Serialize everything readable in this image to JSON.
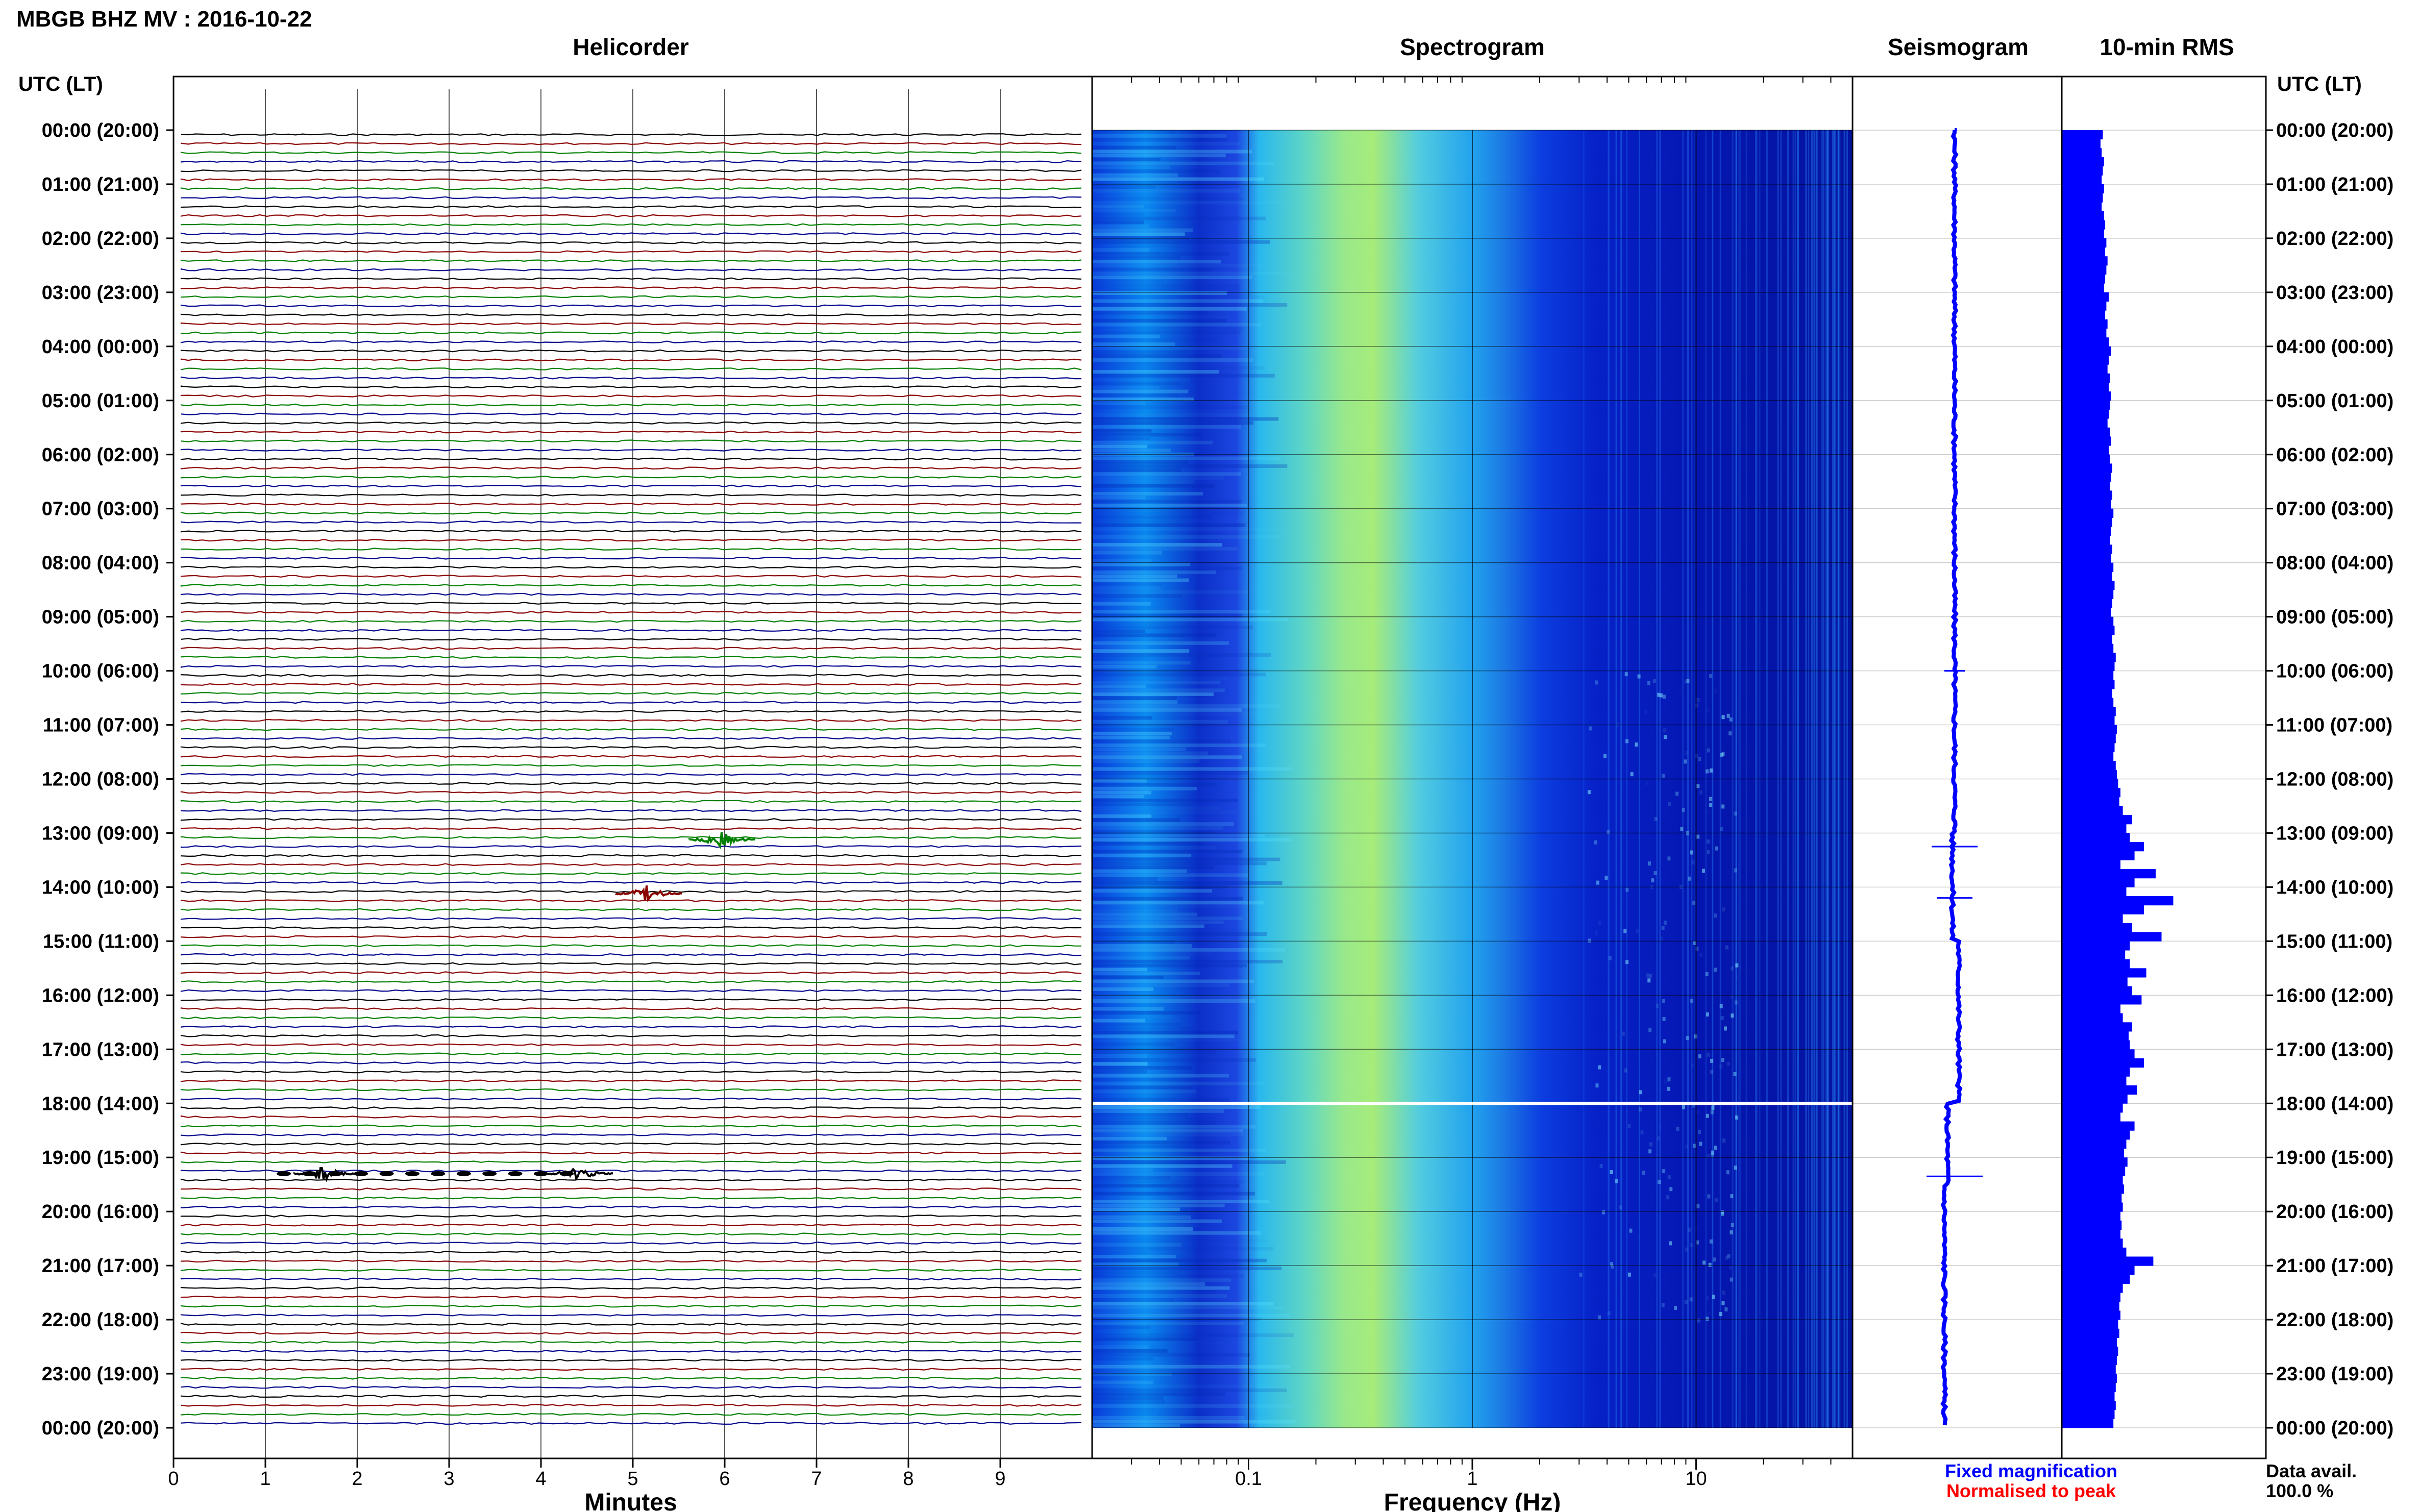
{
  "header": {
    "title": "MBGB BHZ MV : 2016-10-22"
  },
  "panels": {
    "helicorder": "Helicorder",
    "spectrogram": "Spectrogram",
    "seismogram": "Seismogram",
    "rms": "10-min RMS"
  },
  "axis_labels": {
    "utc_left": "UTC (LT)",
    "utc_right": "UTC (LT)",
    "minutes": "Minutes",
    "frequency": "Frequency (Hz)"
  },
  "legend": {
    "fixed": "Fixed magnification",
    "normalised": "Normalised to peak",
    "fixed_color": "#0000ff",
    "normalised_color": "#ff0000"
  },
  "data_availability": {
    "label": "Data avail.",
    "value": "100.0 %"
  },
  "colors": {
    "black_trace": "#000000",
    "red_trace": "#8b0000",
    "green_trace": "#008000",
    "blue_trace": "#00008b",
    "rms": "#0000ff"
  },
  "chart_data": {
    "type": "heatmap",
    "time_labels": [
      "00:00 (20:00)",
      "01:00 (21:00)",
      "02:00 (22:00)",
      "03:00 (23:00)",
      "04:00 (00:00)",
      "05:00 (01:00)",
      "06:00 (02:00)",
      "07:00 (03:00)",
      "08:00 (04:00)",
      "09:00 (05:00)",
      "10:00 (06:00)",
      "11:00 (07:00)",
      "12:00 (08:00)",
      "13:00 (09:00)",
      "14:00 (10:00)",
      "15:00 (11:00)",
      "16:00 (12:00)",
      "17:00 (13:00)",
      "18:00 (14:00)",
      "19:00 (15:00)",
      "20:00 (16:00)",
      "21:00 (17:00)",
      "22:00 (18:00)",
      "23:00 (19:00)",
      "00:00 (20:00)"
    ],
    "minutes_ticks": [
      "0",
      "1",
      "2",
      "3",
      "4",
      "5",
      "6",
      "7",
      "8",
      "9"
    ],
    "minutes_range": [
      0,
      10
    ],
    "freq_ticks": [
      "0.1",
      "1",
      "10"
    ],
    "freq_range": [
      0.02,
      50
    ],
    "freq_scale": "log",
    "rms_rel": [
      0.35,
      0.33,
      0.34,
      0.36,
      0.35,
      0.34,
      0.36,
      0.35,
      0.34,
      0.36,
      0.37,
      0.36,
      0.38,
      0.37,
      0.39,
      0.38,
      0.37,
      0.36,
      0.4,
      0.38,
      0.37,
      0.39,
      0.38,
      0.4,
      0.42,
      0.4,
      0.39,
      0.41,
      0.4,
      0.42,
      0.41,
      0.4,
      0.39,
      0.41,
      0.42,
      0.4,
      0.41,
      0.43,
      0.42,
      0.41,
      0.43,
      0.42,
      0.44,
      0.43,
      0.42,
      0.41,
      0.43,
      0.42,
      0.44,
      0.43,
      0.45,
      0.44,
      0.43,
      0.42,
      0.44,
      0.45,
      0.43,
      0.44,
      0.46,
      0.45,
      0.44,
      0.45,
      0.43,
      0.44,
      0.46,
      0.45,
      0.47,
      0.46,
      0.45,
      0.44,
      0.46,
      0.47,
      0.48,
      0.5,
      0.49,
      0.52,
      0.6,
      0.55,
      0.58,
      0.7,
      0.62,
      0.5,
      0.8,
      0.62,
      0.55,
      0.95,
      0.7,
      0.52,
      0.6,
      0.85,
      0.58,
      0.54,
      0.58,
      0.72,
      0.56,
      0.6,
      0.68,
      0.5,
      0.52,
      0.6,
      0.57,
      0.58,
      0.62,
      0.7,
      0.58,
      0.55,
      0.64,
      0.56,
      0.52,
      0.5,
      0.62,
      0.58,
      0.55,
      0.53,
      0.56,
      0.54,
      0.52,
      0.53,
      0.51,
      0.52,
      0.5,
      0.51,
      0.5,
      0.52,
      0.55,
      0.78,
      0.62,
      0.58,
      0.52,
      0.5,
      0.49,
      0.5,
      0.48,
      0.49,
      0.47,
      0.48,
      0.47,
      0.46,
      0.47,
      0.46,
      0.45,
      0.46,
      0.45,
      0.44
    ],
    "events": [
      {
        "hour": 13.12,
        "minute": 5.95,
        "color": "green"
      },
      {
        "hour": 14.12,
        "minute": 5.15,
        "color": "red"
      },
      {
        "hour": 19.3,
        "minute": 1.65,
        "color": "black"
      },
      {
        "hour": 19.3,
        "minute": 4.4,
        "color": "black"
      }
    ],
    "gap_hour": 18.0
  }
}
